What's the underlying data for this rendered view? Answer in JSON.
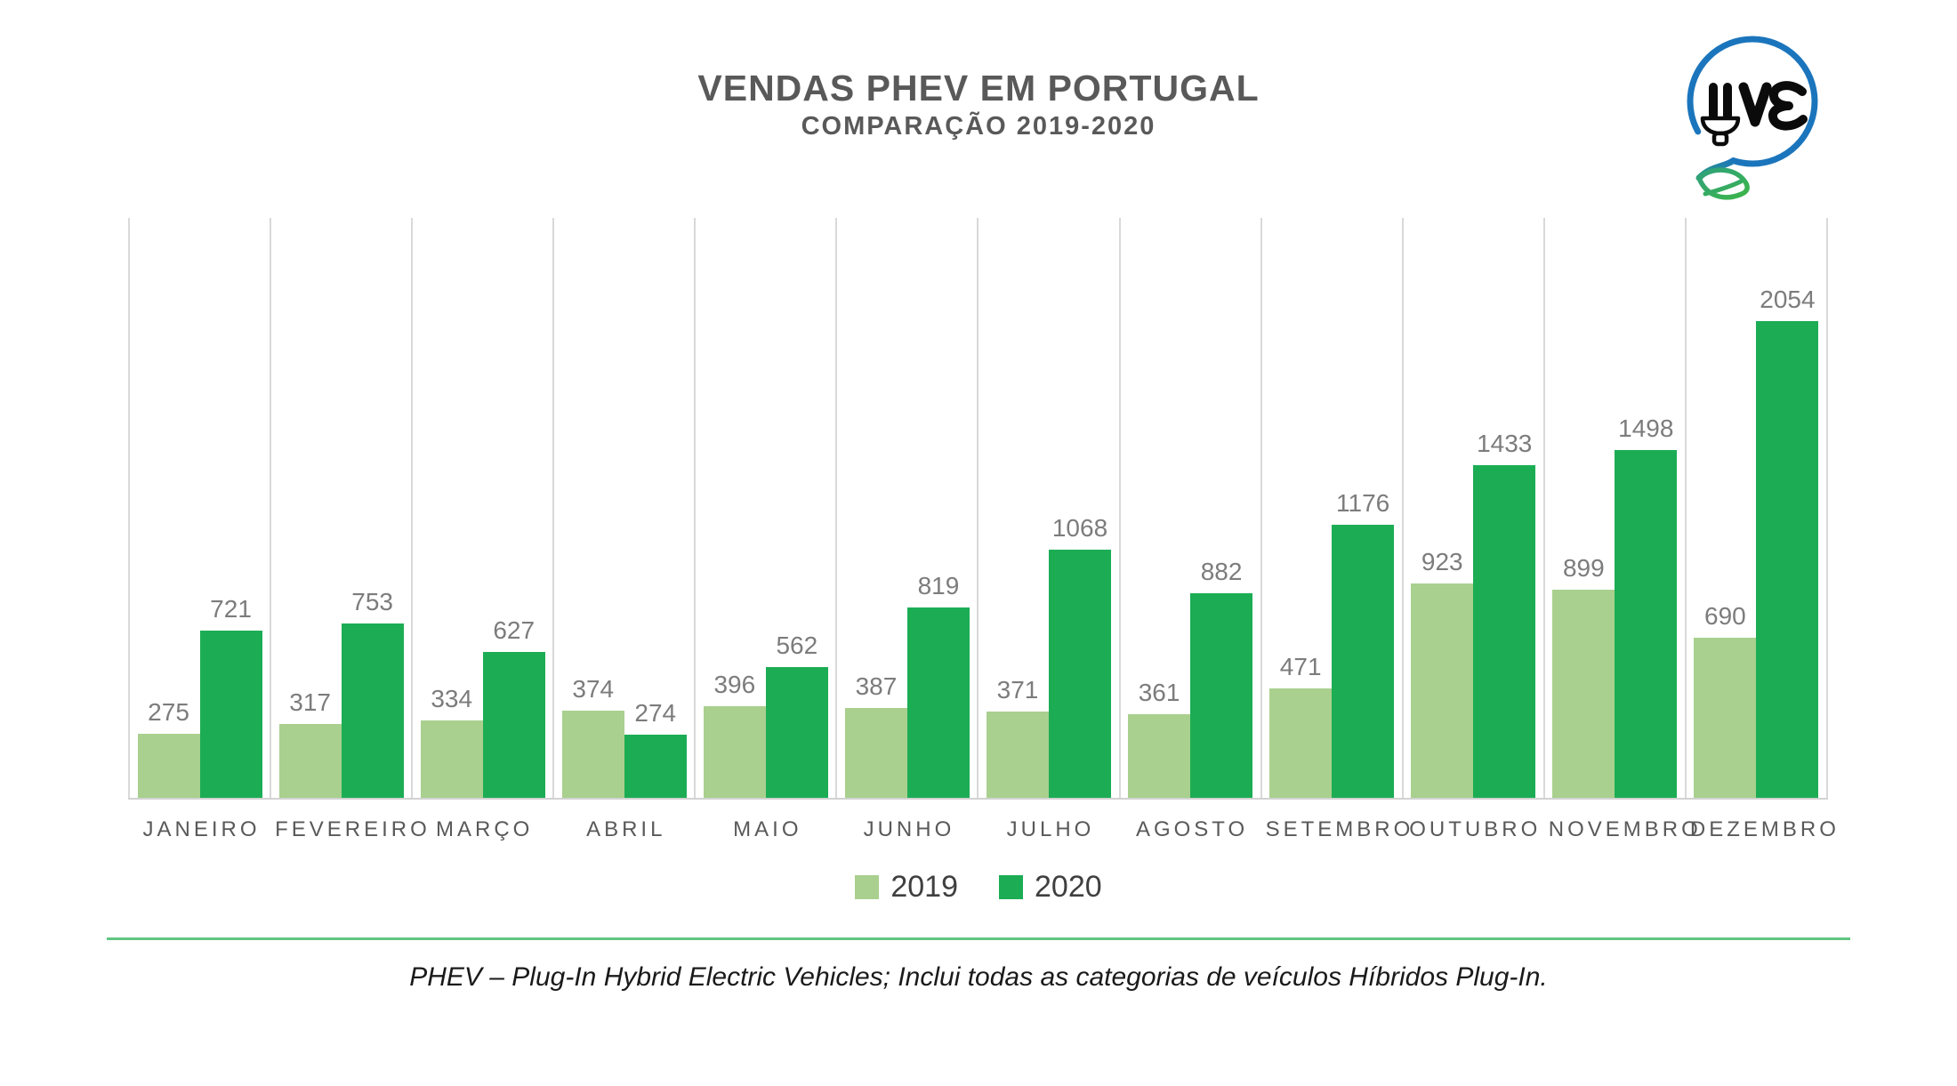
{
  "title": "VENDAS PHEV EM PORTUGAL",
  "subtitle": "COMPARAÇÃO 2019-2020",
  "logo": {
    "text": "UVE",
    "circle_color": "#1B75BC",
    "leaf_color": "#3CB54A",
    "tail_color": "#2FA17C",
    "text_color": "#0B0B0B"
  },
  "chart_data": {
    "type": "bar",
    "title": "VENDAS PHEV EM PORTUGAL",
    "subtitle": "COMPARAÇÃO 2019-2020",
    "categories": [
      "JANEIRO",
      "FEVEREIRO",
      "MARÇO",
      "ABRIL",
      "MAIO",
      "JUNHO",
      "JULHO",
      "AGOSTO",
      "SETEMBRO",
      "OUTUBRO",
      "NOVEMBRO",
      "DEZEMBRO"
    ],
    "series": [
      {
        "name": "2019",
        "color": "#A9D08E",
        "values": [
          275,
          317,
          334,
          374,
          396,
          387,
          371,
          361,
          471,
          923,
          899,
          690
        ]
      },
      {
        "name": "2020",
        "color": "#1CAD54",
        "values": [
          721,
          753,
          627,
          274,
          562,
          819,
          1068,
          882,
          1176,
          1433,
          1498,
          2054
        ]
      }
    ],
    "ylim": [
      0,
      2500
    ],
    "grid": "vertical-only",
    "gridline_color": "#D9D9D9",
    "data_labels": true,
    "data_label_color": "#7C7C7C",
    "legend_position": "bottom"
  },
  "legend": {
    "items": [
      {
        "label": "2019",
        "color": "#A9D08E"
      },
      {
        "label": "2020",
        "color": "#1CAD54"
      }
    ]
  },
  "footer": {
    "divider_color": "#62C583",
    "note": "PHEV – Plug-In Hybrid Electric Vehicles; Inclui todas as categorias de veículos Híbridos Plug-In."
  }
}
